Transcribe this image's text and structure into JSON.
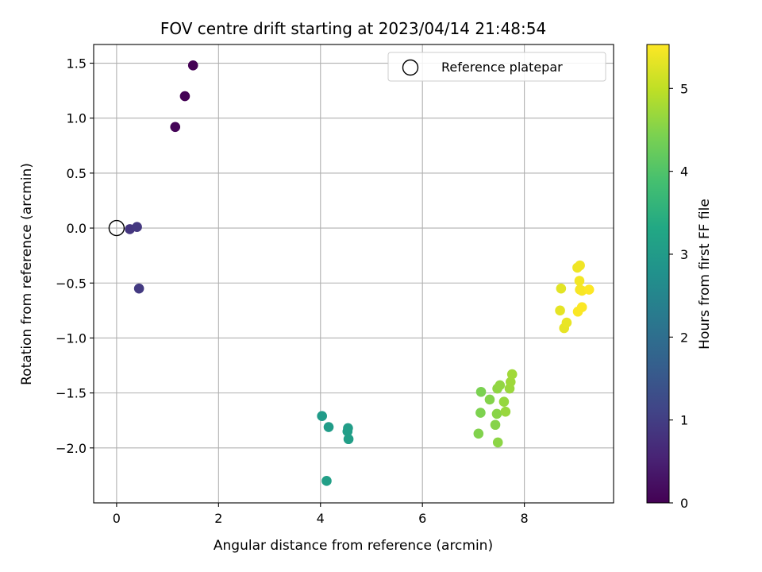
{
  "chart_data": {
    "type": "scatter",
    "title": "FOV centre drift starting at 2023/04/14 21:48:54",
    "xlabel": "Angular distance from reference (arcmin)",
    "ylabel": "Rotation from reference (arcmin)",
    "xlim": [
      -0.45,
      9.75
    ],
    "ylim": [
      -2.5,
      1.67
    ],
    "xticks": [
      0,
      2,
      4,
      6,
      8
    ],
    "yticks": [
      1.5,
      1.0,
      0.5,
      0.0,
      -0.5,
      -1.0,
      -1.5,
      -2.0
    ],
    "xtick_labels": [
      "0",
      "2",
      "4",
      "6",
      "8"
    ],
    "ytick_labels": [
      "1.5",
      "1.0",
      "0.5",
      "0.0",
      "−0.5",
      "−1.0",
      "−1.5",
      "−2.0"
    ],
    "grid": true,
    "legend": {
      "label": "Reference platepar",
      "placement": "upper right"
    },
    "reference_point": {
      "x": 0,
      "y": 0
    },
    "colorbar": {
      "label": "Hours from first FF file",
      "colormap": "viridis",
      "range": [
        0,
        5.53
      ],
      "ticks": [
        0,
        1,
        2,
        3,
        4,
        5
      ],
      "tick_labels": [
        "0",
        "1",
        "2",
        "3",
        "4",
        "5"
      ]
    },
    "points": [
      {
        "x": 1.5,
        "y": 1.48,
        "h": 0.0
      },
      {
        "x": 1.34,
        "y": 1.2,
        "h": 0.02
      },
      {
        "x": 1.15,
        "y": 0.92,
        "h": 0.05
      },
      {
        "x": 0.26,
        "y": -0.01,
        "h": 0.85
      },
      {
        "x": 0.4,
        "y": 0.01,
        "h": 0.9
      },
      {
        "x": 0.44,
        "y": -0.55,
        "h": 0.93
      },
      {
        "x": 4.03,
        "y": -1.71,
        "h": 3.0
      },
      {
        "x": 4.16,
        "y": -1.81,
        "h": 3.02
      },
      {
        "x": 4.54,
        "y": -1.82,
        "h": 3.05
      },
      {
        "x": 4.53,
        "y": -1.85,
        "h": 3.07
      },
      {
        "x": 4.55,
        "y": -1.92,
        "h": 3.08
      },
      {
        "x": 4.12,
        "y": -2.3,
        "h": 3.1
      },
      {
        "x": 7.15,
        "y": -1.49,
        "h": 4.42
      },
      {
        "x": 7.14,
        "y": -1.68,
        "h": 4.45
      },
      {
        "x": 7.1,
        "y": -1.87,
        "h": 4.48
      },
      {
        "x": 7.32,
        "y": -1.56,
        "h": 4.5
      },
      {
        "x": 7.43,
        "y": -1.79,
        "h": 4.52
      },
      {
        "x": 7.46,
        "y": -1.69,
        "h": 4.55
      },
      {
        "x": 7.48,
        "y": -1.95,
        "h": 4.57
      },
      {
        "x": 7.47,
        "y": -1.46,
        "h": 4.6
      },
      {
        "x": 7.52,
        "y": -1.43,
        "h": 4.62
      },
      {
        "x": 7.6,
        "y": -1.58,
        "h": 4.65
      },
      {
        "x": 7.63,
        "y": -1.67,
        "h": 4.67
      },
      {
        "x": 7.71,
        "y": -1.46,
        "h": 4.7
      },
      {
        "x": 7.73,
        "y": -1.4,
        "h": 4.72
      },
      {
        "x": 7.76,
        "y": -1.33,
        "h": 4.75
      },
      {
        "x": 8.72,
        "y": -0.55,
        "h": 5.3
      },
      {
        "x": 8.7,
        "y": -0.75,
        "h": 5.32
      },
      {
        "x": 8.78,
        "y": -0.91,
        "h": 5.34
      },
      {
        "x": 8.83,
        "y": -0.86,
        "h": 5.36
      },
      {
        "x": 9.04,
        "y": -0.36,
        "h": 5.4
      },
      {
        "x": 9.09,
        "y": -0.34,
        "h": 5.42
      },
      {
        "x": 9.08,
        "y": -0.48,
        "h": 5.44
      },
      {
        "x": 9.09,
        "y": -0.56,
        "h": 5.46
      },
      {
        "x": 9.13,
        "y": -0.57,
        "h": 5.48
      },
      {
        "x": 9.05,
        "y": -0.76,
        "h": 5.5
      },
      {
        "x": 9.13,
        "y": -0.72,
        "h": 5.51
      },
      {
        "x": 9.27,
        "y": -0.56,
        "h": 5.53
      }
    ]
  }
}
